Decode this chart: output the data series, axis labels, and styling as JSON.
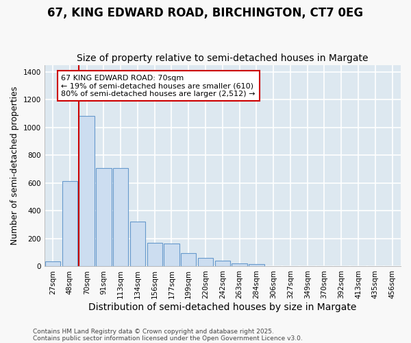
{
  "title": "67, KING EDWARD ROAD, BIRCHINGTON, CT7 0EG",
  "subtitle": "Size of property relative to semi-detached houses in Margate",
  "xlabel": "Distribution of semi-detached houses by size in Margate",
  "ylabel": "Number of semi-detached properties",
  "categories": [
    "27sqm",
    "48sqm",
    "70sqm",
    "91sqm",
    "113sqm",
    "134sqm",
    "156sqm",
    "177sqm",
    "199sqm",
    "220sqm",
    "242sqm",
    "263sqm",
    "284sqm",
    "306sqm",
    "327sqm",
    "349sqm",
    "370sqm",
    "392sqm",
    "413sqm",
    "435sqm",
    "456sqm"
  ],
  "values": [
    35,
    615,
    1085,
    710,
    710,
    325,
    170,
    165,
    95,
    60,
    40,
    20,
    15,
    0,
    0,
    0,
    0,
    0,
    0,
    0,
    0
  ],
  "bar_color": "#ccddf0",
  "bar_edge_color": "#6699cc",
  "redline_x": 2,
  "annotation_title": "67 KING EDWARD ROAD: 70sqm",
  "annotation_line1": "← 19% of semi-detached houses are smaller (610)",
  "annotation_line2": "80% of semi-detached houses are larger (2,512) →",
  "annotation_box_color": "#ffffff",
  "annotation_box_edge": "#cc0000",
  "redline_color": "#cc0000",
  "ylim": [
    0,
    1450
  ],
  "yticks": [
    0,
    200,
    400,
    600,
    800,
    1000,
    1200,
    1400
  ],
  "fig_bg_color": "#f8f8f8",
  "plot_bg_color": "#dde8f0",
  "grid_color": "#ffffff",
  "footer_line1": "Contains HM Land Registry data © Crown copyright and database right 2025.",
  "footer_line2": "Contains public sector information licensed under the Open Government Licence v3.0.",
  "title_fontsize": 12,
  "subtitle_fontsize": 10,
  "tick_fontsize": 7.5,
  "ylabel_fontsize": 9,
  "xlabel_fontsize": 10,
  "annotation_fontsize": 8,
  "footer_fontsize": 6.5
}
